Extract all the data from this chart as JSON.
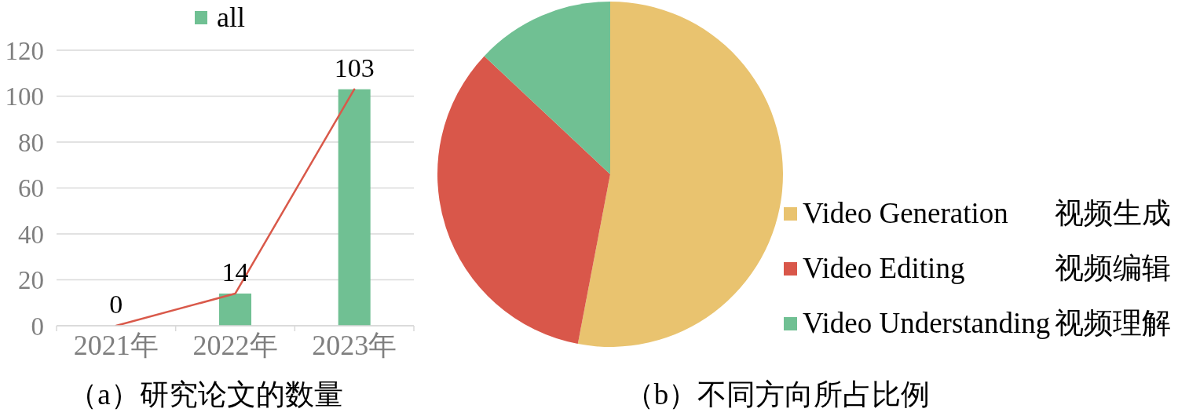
{
  "chart_data": [
    {
      "type": "bar",
      "title": "（a）研究论文的数量",
      "categories": [
        "2021年",
        "2022年",
        "2023年"
      ],
      "series": [
        {
          "name": "all",
          "color": "#70c093",
          "values": [
            0,
            14,
            103
          ]
        },
        {
          "type": "line",
          "color": "#d9594a",
          "values": [
            0,
            14,
            103
          ],
          "value_labels": [
            "0",
            "14",
            "103"
          ]
        }
      ],
      "ylim": [
        0,
        120
      ],
      "yticks": [
        0,
        20,
        40,
        60,
        80,
        100,
        120
      ],
      "grid": "y",
      "legend": "top",
      "marker": "none"
    },
    {
      "type": "pie",
      "title": "（b）不同方向所占比例",
      "categories": [
        "Video Generation 视频生成",
        "Video Editing 视频编辑",
        "Video Understanding 视频理解"
      ],
      "values": [
        53,
        34,
        13
      ],
      "colors": [
        "#e9c36f",
        "#d9574a",
        "#70c093"
      ],
      "legend": "right"
    }
  ]
}
